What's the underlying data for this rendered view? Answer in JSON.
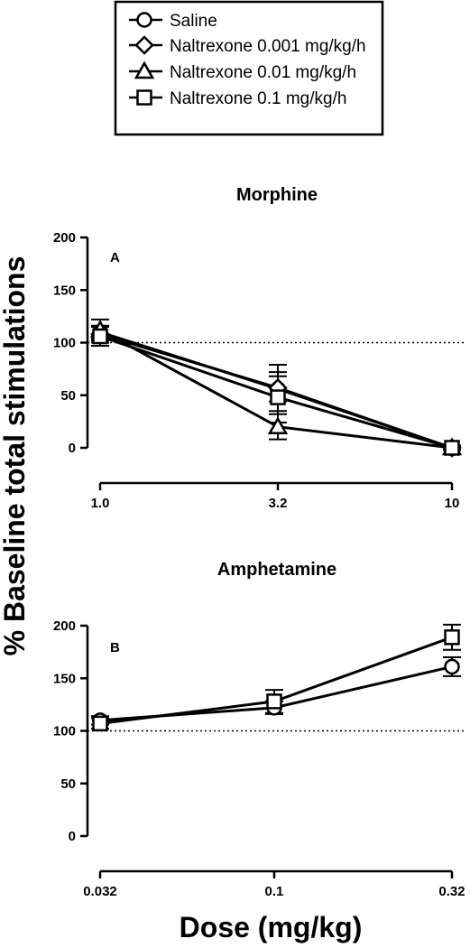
{
  "legend": {
    "items": [
      {
        "label": "Saline",
        "marker": "circle"
      },
      {
        "label": "Naltrexone 0.001 mg/kg/h",
        "marker": "diamond"
      },
      {
        "label": "Naltrexone 0.01 mg/kg/h",
        "marker": "triangle"
      },
      {
        "label": "Naltrexone 0.1 mg/kg/h",
        "marker": "square"
      }
    ]
  },
  "figure": {
    "ylabel": "% Baseline total stimulations",
    "xlabel": "Dose (mg/kg)"
  },
  "chart_data": [
    {
      "type": "line",
      "title": "Morphine",
      "panel_label": "A",
      "x_scale": "log",
      "x": [
        1.0,
        3.2,
        10
      ],
      "x_tick_labels": [
        "1.0",
        "3.2",
        "10"
      ],
      "ylim": [
        0,
        200
      ],
      "y_ticks": [
        0,
        50,
        100,
        150,
        200
      ],
      "reference_line": 100,
      "series": [
        {
          "name": "Saline",
          "marker": "circle",
          "values": [
            110,
            56,
            0
          ],
          "sem": [
            6,
            12,
            2
          ]
        },
        {
          "name": "Naltrexone 0.001 mg/kg/h",
          "marker": "diamond",
          "values": [
            108,
            57,
            0
          ],
          "sem": [
            8,
            22,
            2
          ]
        },
        {
          "name": "Naltrexone 0.01 mg/kg/h",
          "marker": "triangle",
          "values": [
            112,
            20,
            0
          ],
          "sem": [
            10,
            12,
            2
          ]
        },
        {
          "name": "Naltrexone 0.1 mg/kg/h",
          "marker": "square",
          "values": [
            106,
            48,
            0
          ],
          "sem": [
            9,
            24,
            2
          ]
        }
      ]
    },
    {
      "type": "line",
      "title": "Amphetamine",
      "panel_label": "B",
      "x_scale": "log",
      "x": [
        0.032,
        0.1,
        0.32
      ],
      "x_tick_labels": [
        "0.032",
        "0.1",
        "0.32"
      ],
      "ylim": [
        0,
        200
      ],
      "y_ticks": [
        0,
        50,
        100,
        150,
        200
      ],
      "reference_line": 100,
      "series": [
        {
          "name": "Saline",
          "marker": "circle",
          "values": [
            110,
            122,
            161
          ],
          "sem": [
            4,
            6,
            9
          ]
        },
        {
          "name": "Naltrexone 0.1 mg/kg/h",
          "marker": "square",
          "values": [
            107,
            128,
            189
          ],
          "sem": [
            5,
            11,
            12
          ]
        }
      ]
    }
  ]
}
